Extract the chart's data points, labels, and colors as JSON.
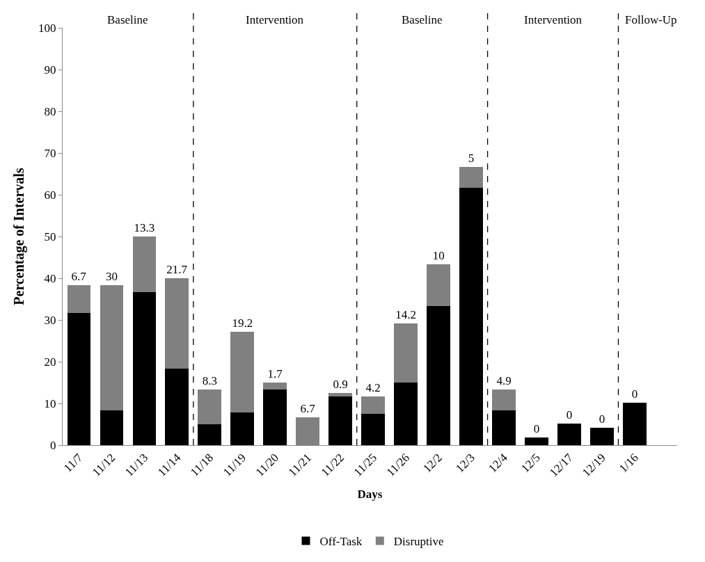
{
  "chart_data": {
    "type": "bar",
    "stacked": true,
    "xlabel": "Days",
    "ylabel": "Percentage of Intervals",
    "categories": [
      "11/7",
      "11/12",
      "11/13",
      "11/14",
      "11/18",
      "11/19",
      "11/20",
      "11/21",
      "11/22",
      "11/25",
      "11/26",
      "12/2",
      "12/3",
      "12/4",
      "12/5",
      "12/17",
      "12/19",
      "1/16"
    ],
    "series": [
      {
        "name": "Off-Task",
        "color": "#000000",
        "values": [
          31.6,
          8.3,
          36.7,
          18.3,
          5,
          7.9,
          13.3,
          0,
          11.6,
          7.5,
          15,
          33.3,
          61.7,
          8.4,
          1.8,
          5.1,
          4.2,
          10.2
        ]
      },
      {
        "name": "Disruptive",
        "color": "#808080",
        "values": [
          6.7,
          30,
          13.3,
          21.7,
          8.3,
          19.2,
          1.7,
          6.7,
          0.9,
          4.2,
          14.2,
          10,
          5,
          4.9,
          0,
          0,
          0,
          0
        ],
        "value_labels": [
          "6.7",
          "30",
          "13.3",
          "21.7",
          "8.3",
          "19.2",
          "1.7",
          "6.7",
          "0.9",
          "4.2",
          "14.2",
          "10",
          "5",
          "4.9",
          "0",
          "0",
          "0",
          "0"
        ]
      }
    ],
    "ylim": [
      0,
      100
    ],
    "yticks": [
      0,
      10,
      20,
      30,
      40,
      50,
      60,
      70,
      80,
      90,
      100
    ],
    "legend": "bottom",
    "annotations": [
      "Baseline",
      "Intervention",
      "Baseline",
      "Intervention",
      "Follow-Up"
    ]
  }
}
